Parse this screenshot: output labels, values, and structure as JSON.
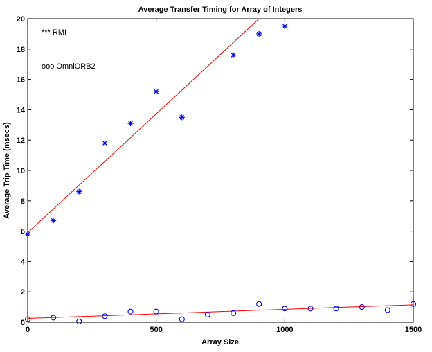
{
  "chart_data": {
    "type": "scatter",
    "title": "Average Transfer Timing for Array of Integers",
    "xlabel": "Array Size",
    "ylabel": "Average Trip Time (msecs)",
    "xlim": [
      0,
      1500
    ],
    "ylim": [
      0,
      20
    ],
    "xticks": [
      0,
      500,
      1000,
      1500
    ],
    "yticks": [
      0,
      2,
      4,
      6,
      8,
      10,
      12,
      14,
      16,
      18,
      20
    ],
    "grid": false,
    "legend_placement": "top-left",
    "series": [
      {
        "name": "RMI",
        "legend_label": "*** RMI",
        "marker": "star",
        "color": "#0000ff",
        "x": [
          0,
          100,
          200,
          300,
          400,
          500,
          600,
          800,
          900,
          1000
        ],
        "y": [
          5.8,
          6.7,
          8.6,
          11.8,
          13.1,
          15.2,
          13.5,
          17.6,
          19.0,
          19.5
        ],
        "fit": {
          "color": "#ff0000",
          "x": [
            0,
            900
          ],
          "y": [
            5.9,
            20.0
          ]
        }
      },
      {
        "name": "OmniORB2",
        "legend_label": "ooo OmniORB2",
        "marker": "circle",
        "color": "#0000ff",
        "x": [
          0,
          100,
          200,
          300,
          400,
          500,
          600,
          700,
          800,
          900,
          1000,
          1100,
          1200,
          1300,
          1400,
          1500
        ],
        "y": [
          0.2,
          0.3,
          0.05,
          0.4,
          0.7,
          0.7,
          0.2,
          0.5,
          0.6,
          1.2,
          0.9,
          0.9,
          0.9,
          1.0,
          0.8,
          1.2
        ],
        "fit": {
          "color": "#ff0000",
          "x": [
            0,
            1500
          ],
          "y": [
            0.25,
            1.15
          ]
        }
      }
    ]
  }
}
